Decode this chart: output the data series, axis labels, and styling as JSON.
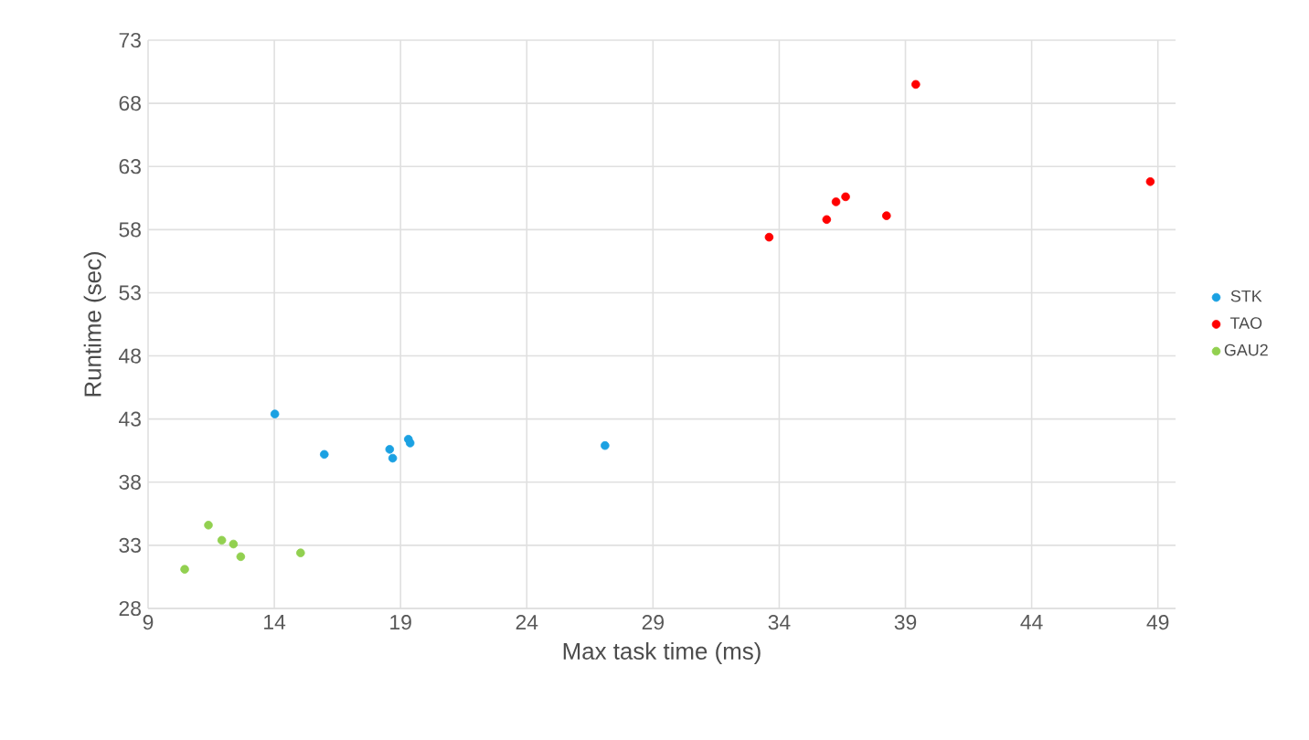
{
  "chart_data": {
    "type": "scatter",
    "xlabel": "Max task time (ms)",
    "ylabel": "Runtime (sec)",
    "series": [
      {
        "name": "STK",
        "color": "#1ba1e2",
        "x": [
          14.02,
          15.98,
          18.57,
          18.69,
          19.31,
          19.38,
          27.1
        ],
        "values": [
          43.4,
          40.2,
          40.6,
          39.9,
          41.4,
          41.1,
          40.9
        ]
      },
      {
        "name": "TAO",
        "color": "#ff0000",
        "x": [
          33.6,
          35.88,
          36.25,
          36.63,
          38.25,
          39.41,
          48.7
        ],
        "values": [
          57.4,
          58.8,
          60.2,
          60.6,
          59.1,
          69.5,
          61.8
        ]
      },
      {
        "name": "GAU2",
        "color": "#92d050",
        "x": [
          10.45,
          11.39,
          11.92,
          12.38,
          12.67,
          15.04
        ],
        "values": [
          31.1,
          34.6,
          33.4,
          33.1,
          32.1,
          32.4
        ]
      }
    ],
    "xlim": [
      9,
      49.7
    ],
    "ylim": [
      28,
      73
    ],
    "xticks": [
      9,
      14,
      19,
      24,
      29,
      34,
      39,
      44,
      49
    ],
    "yticks": [
      28,
      33,
      38,
      43,
      48,
      53,
      58,
      63,
      68,
      73
    ],
    "grid": true,
    "legend": "right"
  }
}
